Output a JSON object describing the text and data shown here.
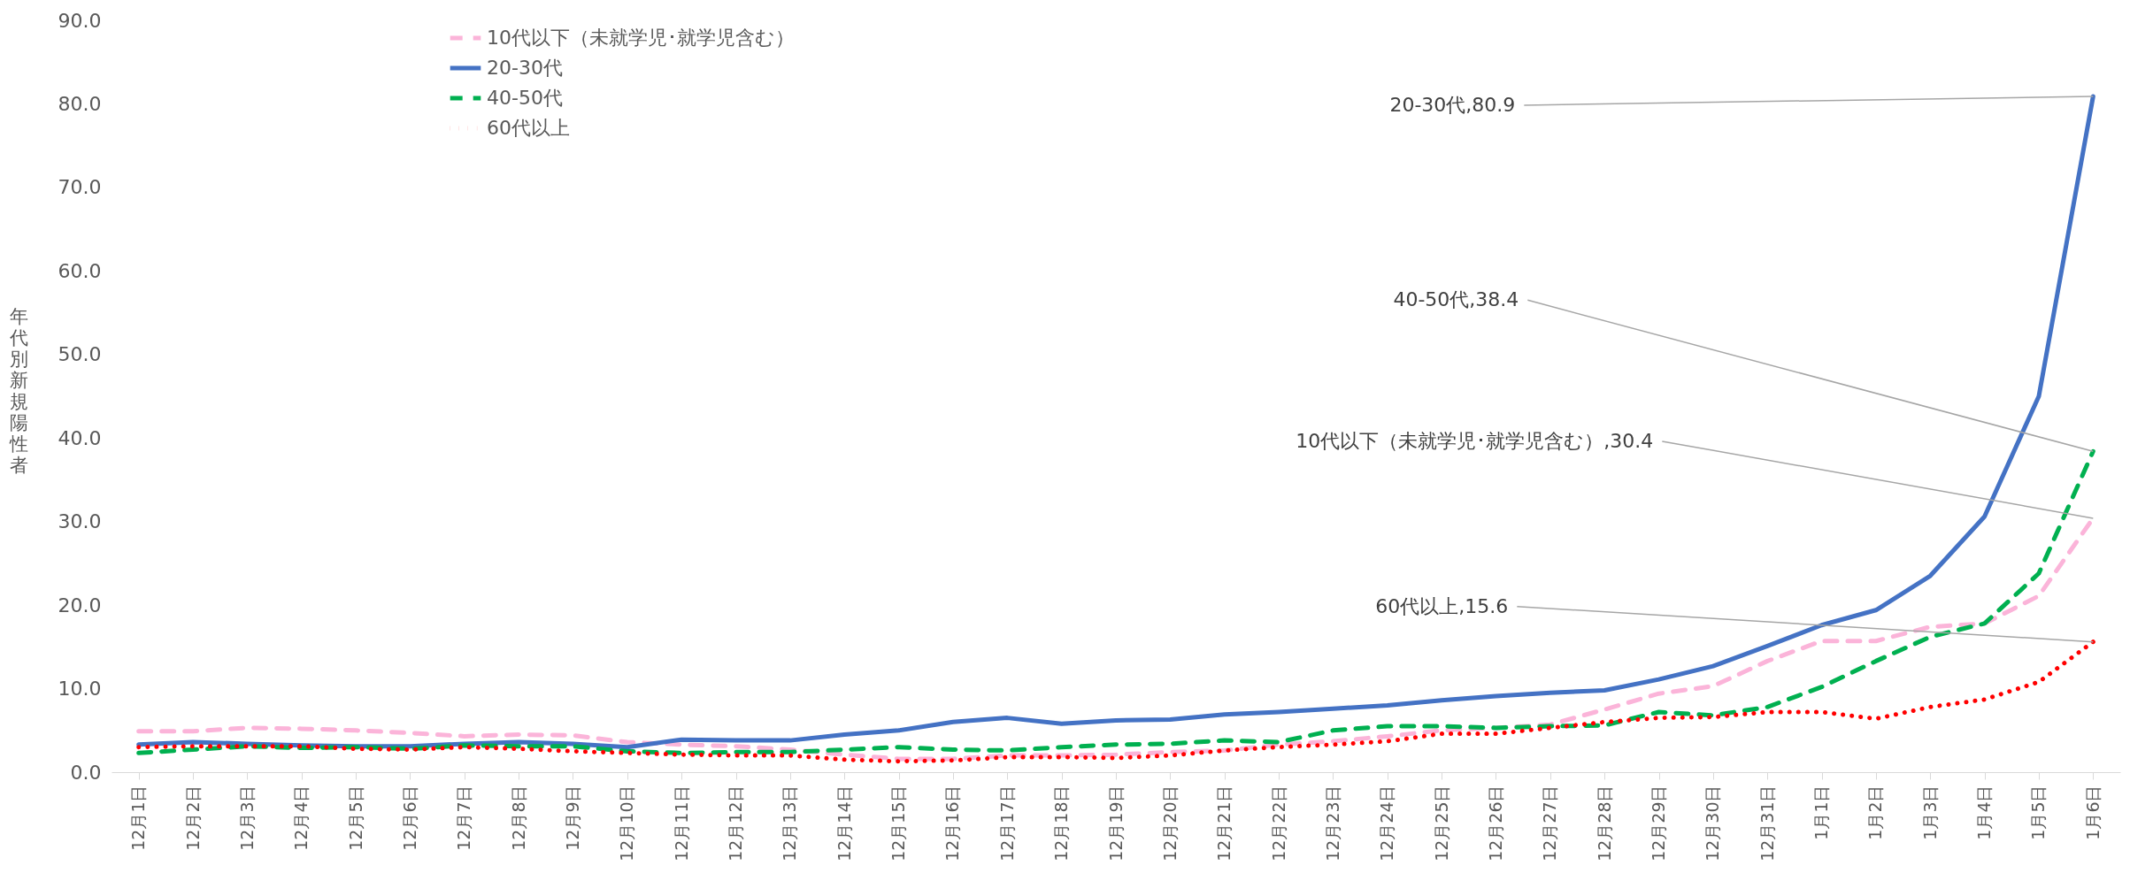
{
  "chart_data": {
    "type": "line",
    "ylabel": "年代別新規陽性者",
    "categories": [
      "12月1日",
      "12月2日",
      "12月3日",
      "12月4日",
      "12月5日",
      "12月6日",
      "12月7日",
      "12月8日",
      "12月9日",
      "12月10日",
      "12月11日",
      "12月12日",
      "12月13日",
      "12月14日",
      "12月15日",
      "12月16日",
      "12月17日",
      "12月18日",
      "12月19日",
      "12月20日",
      "12月21日",
      "12月22日",
      "12月23日",
      "12月24日",
      "12月25日",
      "12月26日",
      "12月27日",
      "12月28日",
      "12月29日",
      "12月30日",
      "12月31日",
      "1月1日",
      "1月2日",
      "1月3日",
      "1月4日",
      "1月5日",
      "1月6日"
    ],
    "series": [
      {
        "name": "10代以下（未就学児･就学児含む）",
        "color": "#fbb4d9",
        "line_style": "dashed",
        "values": [
          4.9,
          4.9,
          5.3,
          5.2,
          5.0,
          4.7,
          4.3,
          4.5,
          4.4,
          3.6,
          3.3,
          3.1,
          2.7,
          2.1,
          1.6,
          1.6,
          2.0,
          2.0,
          2.1,
          2.4,
          2.6,
          3.3,
          3.7,
          4.3,
          5.0,
          5.3,
          5.7,
          7.5,
          9.4,
          10.3,
          13.3,
          15.7,
          15.7,
          17.4,
          17.8,
          21.1,
          30.4
        ]
      },
      {
        "name": "20-30代",
        "color": "#4472c4",
        "line_style": "solid",
        "values": [
          3.3,
          3.6,
          3.4,
          3.2,
          3.1,
          3.1,
          3.4,
          3.6,
          3.4,
          3.0,
          3.9,
          3.8,
          3.8,
          4.5,
          5.0,
          6.0,
          6.5,
          5.8,
          6.2,
          6.3,
          6.9,
          7.2,
          7.6,
          8.0,
          8.6,
          9.1,
          9.5,
          9.8,
          11.1,
          12.7,
          15.1,
          17.6,
          19.4,
          23.5,
          30.6,
          45.0,
          80.9
        ]
      },
      {
        "name": "40-50代",
        "color": "#00b050",
        "line_style": "dashed",
        "values": [
          2.3,
          2.7,
          3.1,
          2.9,
          3.0,
          2.8,
          3.2,
          3.1,
          3.1,
          2.5,
          2.3,
          2.4,
          2.4,
          2.7,
          3.0,
          2.7,
          2.6,
          3.0,
          3.3,
          3.4,
          3.8,
          3.6,
          5.0,
          5.5,
          5.5,
          5.3,
          5.5,
          5.6,
          7.2,
          6.8,
          7.8,
          10.2,
          13.3,
          16.2,
          17.8,
          23.8,
          38.4
        ]
      },
      {
        "name": "60代以上",
        "color": "#ff0000",
        "line_style": "dotted",
        "values": [
          3.0,
          3.1,
          3.1,
          3.1,
          2.8,
          2.7,
          3.0,
          2.8,
          2.5,
          2.3,
          2.1,
          2.0,
          2.0,
          1.5,
          1.3,
          1.4,
          1.8,
          1.8,
          1.7,
          2.0,
          2.6,
          3.0,
          3.3,
          3.7,
          4.6,
          4.6,
          5.3,
          6.0,
          6.5,
          6.6,
          7.2,
          7.2,
          6.4,
          7.8,
          8.7,
          10.8,
          15.6
        ]
      }
    ],
    "ylim": [
      0,
      90
    ],
    "yticks": [
      {
        "value": 0,
        "label": "0.0"
      },
      {
        "value": 10,
        "label": "10.0"
      },
      {
        "value": 20,
        "label": "20.0"
      },
      {
        "value": 30,
        "label": "30.0"
      },
      {
        "value": 40,
        "label": "40.0"
      },
      {
        "value": 50,
        "label": "50.0"
      },
      {
        "value": 60,
        "label": "60.0"
      },
      {
        "value": 70,
        "label": "70.0"
      },
      {
        "value": 80,
        "label": "80.0"
      },
      {
        "value": 90,
        "label": "90.0"
      }
    ],
    "annotations": [
      {
        "text": "20-30代,80.9",
        "x": "1月6日",
        "y": 80.9
      },
      {
        "text": "40-50代,38.4",
        "x": "1月6日",
        "y": 38.4
      },
      {
        "text": "10代以下（未就学児･就学児含む）,30.4",
        "x": "1月6日",
        "y": 30.4
      },
      {
        "text": "60代以上,15.6",
        "x": "1月6日",
        "y": 15.6
      }
    ],
    "grid": false,
    "legend": "top left"
  }
}
